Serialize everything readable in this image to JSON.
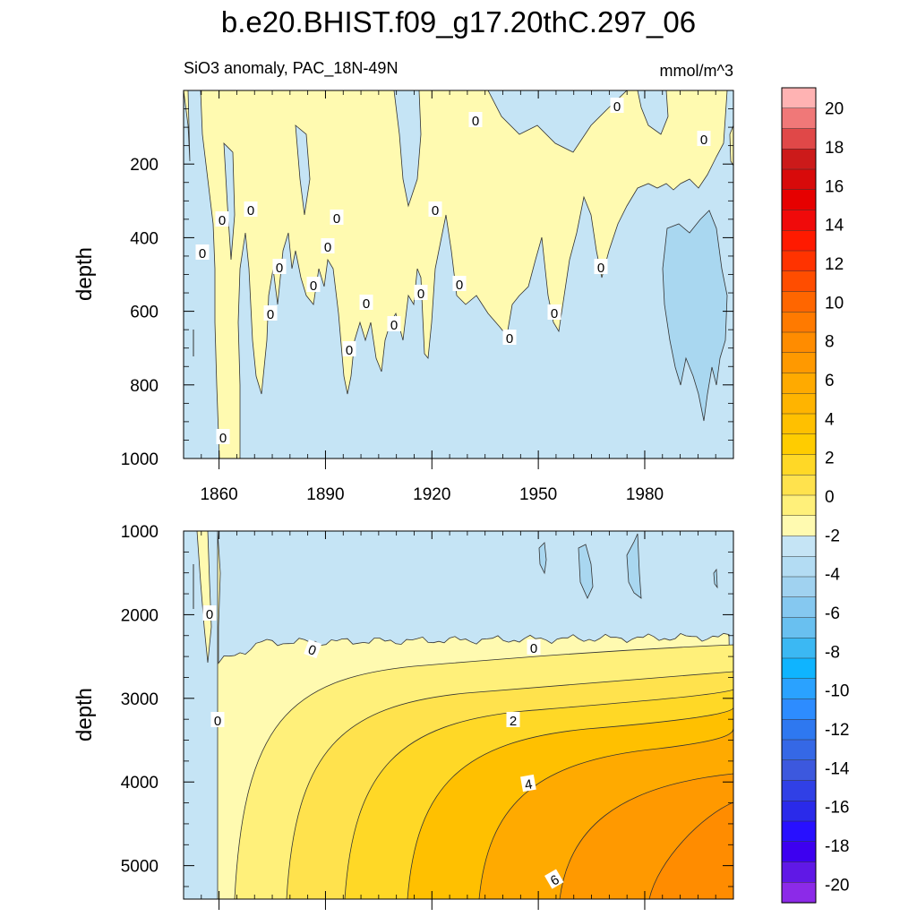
{
  "chart_data": {
    "type": "contour",
    "title": "b.e20.BHIST.f09_g17.20thC.297_06",
    "subtitle_left": "SiO3 anomaly, PAC_18N-49N",
    "units": "mmol/m^3",
    "xlabel": "",
    "x_range": [
      1850,
      2005
    ],
    "x_ticks": [
      1860,
      1890,
      1920,
      1950,
      1980
    ],
    "x_tick_labels": [
      "1860",
      "1890",
      "1920",
      "1950",
      "1980"
    ],
    "panels": [
      {
        "name": "upper",
        "ylabel": "depth",
        "y_range": [
          0,
          1000
        ],
        "y_inverted": true,
        "y_ticks": [
          200,
          400,
          600,
          800,
          1000
        ],
        "y_tick_labels": [
          "200",
          "400",
          "600",
          "800",
          "1000"
        ],
        "show_x_tick_labels": true,
        "contour_labels": [
          "0",
          "0",
          "0",
          "0",
          "0",
          "0",
          "0",
          "0",
          "0",
          "0",
          "0",
          "0",
          "0",
          "0",
          "0",
          "0",
          "0",
          "0",
          "0",
          "0",
          "0"
        ]
      },
      {
        "name": "lower",
        "ylabel": "depth",
        "y_range": [
          1000,
          5400
        ],
        "y_inverted": true,
        "y_ticks": [
          1000,
          2000,
          3000,
          4000,
          5000
        ],
        "y_tick_labels": [
          "1000",
          "2000",
          "3000",
          "4000",
          "5000"
        ],
        "show_x_tick_labels": false,
        "contour_labels": [
          "0",
          "0",
          "0",
          "0",
          "2",
          "4",
          "6"
        ]
      }
    ],
    "colorbar": {
      "levels": [
        -20,
        -18,
        -16,
        -14,
        -12,
        -10,
        -8,
        -6,
        -4,
        -2,
        0,
        2,
        4,
        6,
        8,
        10,
        12,
        14,
        16,
        18,
        20
      ],
      "labels": [
        "20",
        "18",
        "16",
        "14",
        "12",
        "10",
        "8",
        "6",
        "4",
        "2",
        "0",
        "-2",
        "-4",
        "-6",
        "-8",
        "-10",
        "-12",
        "-14",
        "-16",
        "-18",
        "-20"
      ],
      "colors_top_to_bottom": [
        "#ffb3b3",
        "#f07878",
        "#e04848",
        "#cc1a1a",
        "#d80a0a",
        "#e60000",
        "#f00a0a",
        "#ff1a00",
        "#ff3300",
        "#ff4d00",
        "#ff6600",
        "#ff7a00",
        "#ff8c00",
        "#ff9900",
        "#ffaa00",
        "#ffb400",
        "#ffc000",
        "#ffcc00",
        "#ffd826",
        "#ffe24d",
        "#fff07a",
        "#fffab0",
        "#c5e4f5",
        "#b3dcf3",
        "#a0d2f0",
        "#85c8f0",
        "#69c0f0",
        "#3bb8f3",
        "#0fb4ff",
        "#2aa2ff",
        "#2d8cff",
        "#2e78f0",
        "#3568e6",
        "#3c58de",
        "#3040e6",
        "#2a2aea",
        "#2810ff",
        "#3d00f0",
        "#6018e6",
        "#8c2ae8"
      ]
    },
    "colors": {
      "neg_fill": "#c5e4f5",
      "neg_deep": "#a9d7f0",
      "zero_pos": "#fffab0",
      "pos_2_3": "#fff07a",
      "pos_3_4": "#ffe24d",
      "pos_4_5": "#ffd826",
      "pos_5_6": "#ffc000",
      "pos_6_7": "#ffaa00",
      "pos_7_8": "#ff9900",
      "pos_8_9": "#ff8c00"
    }
  }
}
